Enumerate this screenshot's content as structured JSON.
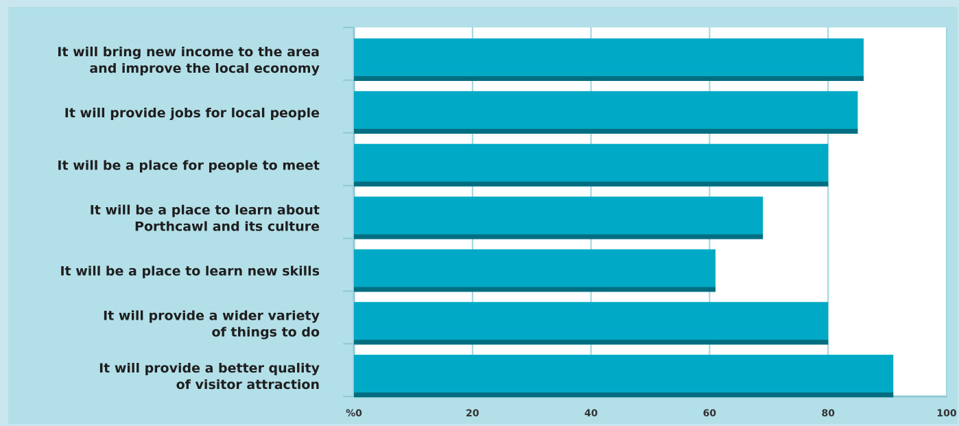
{
  "chart_data": {
    "type": "bar",
    "orientation": "horizontal",
    "categories": [
      [
        "It will bring new income to the area",
        "and improve the local economy"
      ],
      [
        "It will provide jobs for local people"
      ],
      [
        "It will be a place for people to meet"
      ],
      [
        "It will be a place to learn about",
        "Porthcawl and its culture"
      ],
      [
        "It will be a place to learn new skills"
      ],
      [
        "It will provide a wider variety",
        "of things to do"
      ],
      [
        "It will provide a better quality",
        "of visitor attraction"
      ]
    ],
    "values": [
      86,
      85,
      80,
      69,
      61,
      80,
      91
    ],
    "xlim": [
      0,
      100
    ],
    "x_ticks": [
      0,
      20,
      40,
      60,
      80,
      100
    ],
    "x_tick_labels": [
      "%0",
      "20",
      "40",
      "60",
      "80",
      "100"
    ],
    "grid": true,
    "title": "",
    "xlabel": "",
    "ylabel": ""
  },
  "colors": {
    "panel": "#b3dfe8",
    "plot_bg": "#ffffff",
    "bar": "#00a9c5",
    "bar_shadow": "#006e80",
    "grid": "#9fd3de",
    "axis": "#8fc9d6"
  }
}
